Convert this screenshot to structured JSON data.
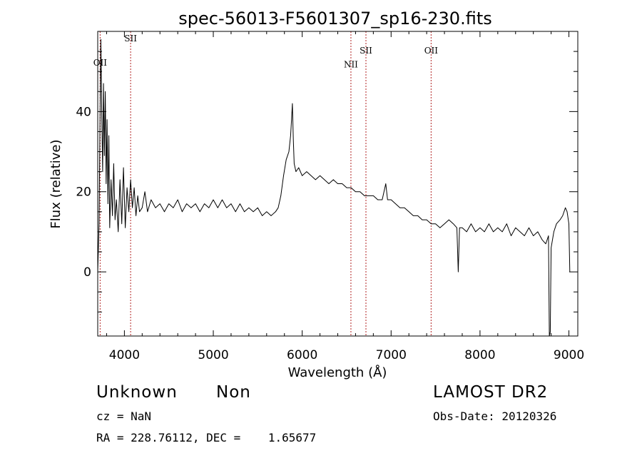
{
  "chart_data": {
    "type": "line",
    "title": "spec-56013-F5601307_sp16-230.fits",
    "xlabel": "Wavelength (Å)",
    "ylabel": "Flux (relative)",
    "xlim": [
      3700,
      9100
    ],
    "ylim": [
      -16,
      60
    ],
    "xticks": [
      4000,
      5000,
      6000,
      7000,
      8000,
      9000
    ],
    "yticks": [
      0,
      20,
      40
    ],
    "grid": false,
    "line_color": "#000000",
    "marker_color": "#b22222",
    "line_markers": [
      {
        "label": "OII",
        "x": 3727,
        "label_y": 51.5
      },
      {
        "label": "SII",
        "x": 4070,
        "label_y": 57.5
      },
      {
        "label": "NII",
        "x": 6548,
        "label_y": 51.0
      },
      {
        "label": "SII",
        "x": 6717,
        "label_y": 54.5
      },
      {
        "label": "OII",
        "x": 7450,
        "label_y": 54.5
      }
    ],
    "series": [
      {
        "x": [
          3700,
          3715,
          3725,
          3735,
          3745,
          3755,
          3765,
          3775,
          3785,
          3795,
          3805,
          3815,
          3825,
          3835,
          3850,
          3865,
          3880,
          3895,
          3910,
          3930,
          3950,
          3970,
          3990,
          4010,
          4030,
          4050,
          4070,
          4090,
          4110,
          4130,
          4150,
          4170,
          4200,
          4230,
          4260,
          4300,
          4350,
          4400,
          4450,
          4500,
          4550,
          4600,
          4650,
          4700,
          4750,
          4800,
          4850,
          4900,
          4950,
          5000,
          5050,
          5100,
          5150,
          5200,
          5250,
          5300,
          5350,
          5400,
          5450,
          5500,
          5550,
          5600,
          5650,
          5700,
          5730,
          5760,
          5790,
          5820,
          5850,
          5870,
          5880,
          5890,
          5900,
          5910,
          5930,
          5960,
          6000,
          6050,
          6100,
          6150,
          6200,
          6250,
          6300,
          6350,
          6400,
          6450,
          6500,
          6550,
          6600,
          6650,
          6700,
          6750,
          6800,
          6850,
          6900,
          6940,
          6960,
          7000,
          7050,
          7100,
          7150,
          7200,
          7250,
          7300,
          7350,
          7400,
          7450,
          7500,
          7550,
          7600,
          7650,
          7700,
          7740,
          7755,
          7770,
          7800,
          7850,
          7900,
          7950,
          8000,
          8050,
          8100,
          8150,
          8200,
          8250,
          8300,
          8350,
          8400,
          8450,
          8500,
          8550,
          8600,
          8650,
          8700,
          8740,
          8770,
          8780,
          8790,
          8800,
          8830,
          8860,
          8900,
          8930,
          8960,
          8980,
          9000,
          9010
        ],
        "y": [
          0,
          12,
          36,
          58,
          40,
          25,
          47,
          29,
          45,
          22,
          38,
          17,
          34,
          11,
          23,
          14,
          27,
          13,
          18,
          10,
          23,
          12,
          26,
          11,
          21,
          15,
          23,
          16,
          21,
          14,
          19,
          15,
          16,
          20,
          15,
          18,
          16,
          17,
          15,
          17,
          16,
          18,
          15,
          17,
          16,
          17,
          15,
          17,
          16,
          18,
          16,
          18,
          16,
          17,
          15,
          17,
          15,
          16,
          15,
          16,
          14,
          15,
          14,
          15,
          16,
          19,
          24,
          28,
          30,
          34,
          38,
          42,
          33,
          27,
          25,
          26,
          24,
          25,
          24,
          23,
          24,
          23,
          22,
          23,
          22,
          22,
          21,
          21,
          20,
          20,
          19,
          19,
          19,
          18,
          18,
          22,
          18,
          18,
          17,
          16,
          16,
          15,
          14,
          14,
          13,
          13,
          12,
          12,
          11,
          12,
          13,
          12,
          11,
          0,
          11,
          11,
          10,
          12,
          10,
          11,
          10,
          12,
          10,
          11,
          10,
          12,
          9,
          11,
          10,
          9,
          11,
          9,
          10,
          8,
          7,
          9,
          -16,
          -15,
          6,
          10,
          12,
          13,
          14,
          16,
          15,
          12,
          0
        ]
      }
    ]
  },
  "info": {
    "class_label": "Unknown",
    "subclass_label": "Non",
    "survey": "LAMOST DR2",
    "redshift": "cz = NaN",
    "obs_date": "Obs-Date: 20120326",
    "coordinates": "RA = 228.76112, DEC =    1.65677"
  }
}
